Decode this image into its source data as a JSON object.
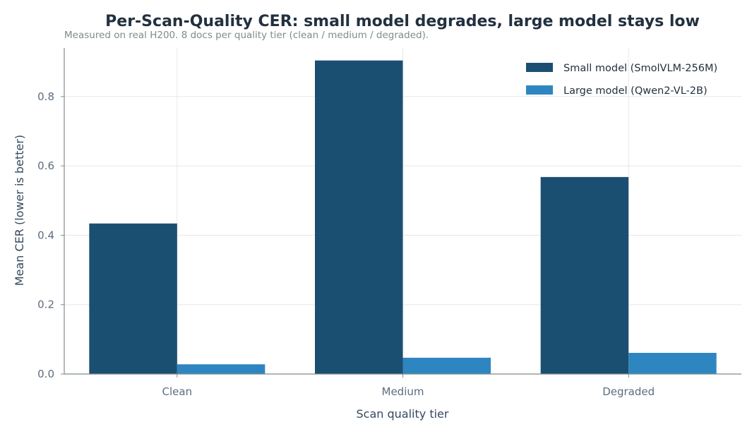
{
  "chart_data": {
    "type": "bar",
    "title": "Per-Scan-Quality CER: small model degrades, large model stays low",
    "subtitle": "Measured on real H200. 8 docs per quality tier (clean / medium / degraded).",
    "xlabel": "Scan quality tier",
    "ylabel": "Mean CER (lower is better)",
    "categories": [
      "Clean",
      "Medium",
      "Degraded"
    ],
    "ylim": [
      0,
      0.94
    ],
    "yticks": [
      0.0,
      0.2,
      0.4,
      0.6,
      0.8
    ],
    "ytick_labels": [
      "0.0",
      "0.2",
      "0.4",
      "0.6",
      "0.8"
    ],
    "grid": true,
    "legend_position": "top-right",
    "series": [
      {
        "name": "Small model (SmolVLM-256M)",
        "color": "#1b4f72",
        "values": [
          0.434,
          0.904,
          0.568
        ]
      },
      {
        "name": "Large model (Qwen2-VL-2B)",
        "color": "#2e86c1",
        "values": [
          0.028,
          0.047,
          0.061
        ]
      }
    ]
  }
}
